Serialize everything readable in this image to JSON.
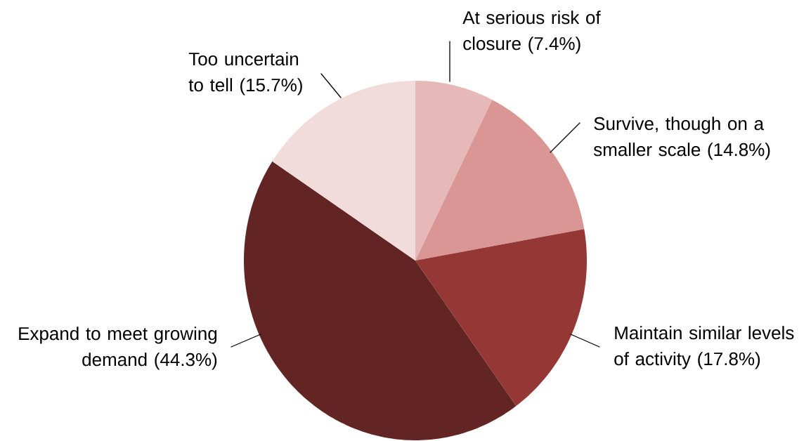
{
  "chart_data": {
    "type": "pie",
    "categories": [
      "At serious risk of closure (7.4%)",
      "Survive, though on a smaller scale (14.8%)",
      "Maintain similar levels of activity (17.8%)",
      "Expand to meet growing demand (44.3%)",
      "Too uncertain to tell (15.7%)"
    ],
    "values": [
      7.4,
      14.8,
      17.8,
      44.3,
      15.7
    ],
    "colors": [
      "#e6b9b8",
      "#d99694",
      "#953735",
      "#632523",
      "#f2dcdb"
    ]
  }
}
